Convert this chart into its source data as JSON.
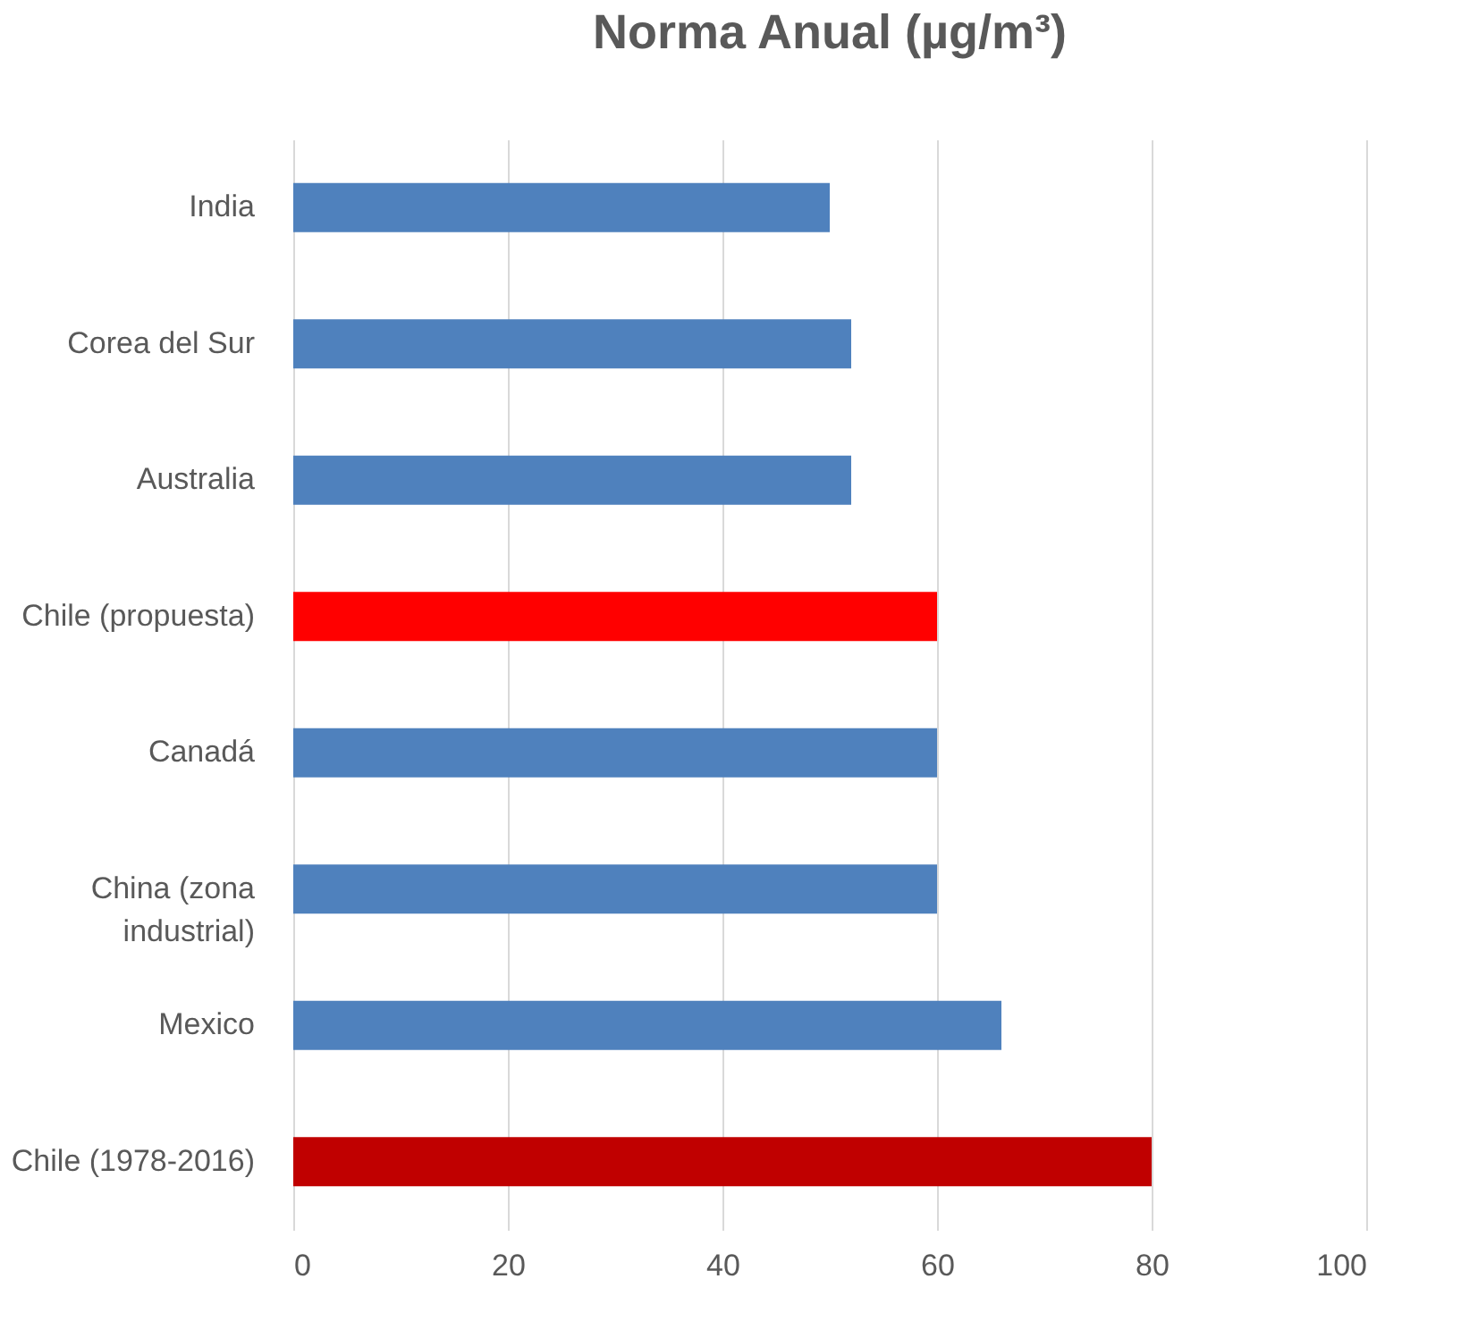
{
  "chart_data": {
    "type": "bar",
    "orientation": "horizontal",
    "title": "Norma Anual (µg/m³)",
    "categories": [
      "India",
      "Corea del Sur",
      "Australia",
      "Chile (propuesta)",
      "Canadá",
      "China (zona industrial)",
      "Mexico",
      "Chile (1978-2016)"
    ],
    "values": [
      50,
      52,
      52,
      60,
      60,
      60,
      66,
      80
    ],
    "colors": [
      "#4f81bd",
      "#4f81bd",
      "#4f81bd",
      "#ff0000",
      "#4f81bd",
      "#4f81bd",
      "#4f81bd",
      "#c00000"
    ],
    "xlim": [
      0,
      100
    ],
    "xticks": [
      0,
      20,
      40,
      60,
      80,
      100
    ],
    "grid": "x"
  }
}
